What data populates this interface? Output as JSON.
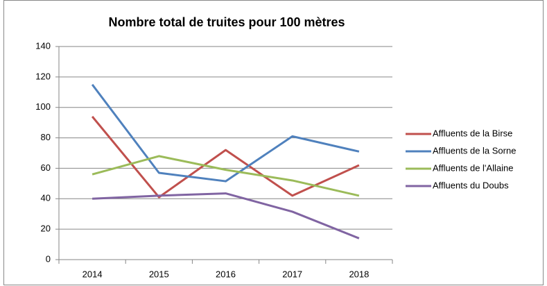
{
  "chart_data": {
    "type": "line",
    "title": "Nombre total de truites pour 100 mètres",
    "categories": [
      "2014",
      "2015",
      "2016",
      "2017",
      "2018"
    ],
    "series": [
      {
        "name": "Affluents de la Birse",
        "color": "#c0504d",
        "values": [
          94,
          41,
          72,
          42,
          62
        ]
      },
      {
        "name": "Affluents de la Sorne",
        "color": "#4f81bd",
        "values": [
          115,
          57,
          51.5,
          81,
          71
        ]
      },
      {
        "name": "Affluents de l'Allaine",
        "color": "#9bbb59",
        "values": [
          56,
          68,
          59,
          52,
          42
        ]
      },
      {
        "name": "Affluents du Doubs",
        "color": "#8064a2",
        "values": [
          40,
          42,
          43.5,
          31.5,
          14
        ]
      }
    ],
    "ylim": [
      0,
      140
    ],
    "yticks": [
      0,
      20,
      40,
      60,
      80,
      100,
      120,
      140
    ],
    "grid": true,
    "legend": "right"
  }
}
